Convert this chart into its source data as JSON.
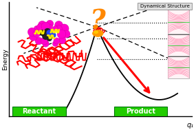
{
  "bg_color": "#f0f0f0",
  "title": "Dynamical Structure",
  "ylabel": "Energy",
  "xlabel": "q₁",
  "reactant_label": "Reactant",
  "product_label": "Product",
  "reactant_color": "#22cc00",
  "product_color": "#22cc00",
  "axis_color": "black",
  "red_color": "#ff0000",
  "question_color": "#ff8800",
  "orange_ball_color": "#ff8800",
  "yellow_color": "#ffee00",
  "panel_bg": "#ffffff",
  "panel_border": "#999999",
  "title_box_bg": "#e0e0e0",
  "title_box_border": "#888888",
  "pink_line_color": "#ff6699",
  "pink_bg_color": "#ffe0e8",
  "green_line_color": "#44cc44",
  "molecule_pink": "#ff00cc",
  "molecule_dark": "#222222",
  "molecule_blue": "#2244ff"
}
